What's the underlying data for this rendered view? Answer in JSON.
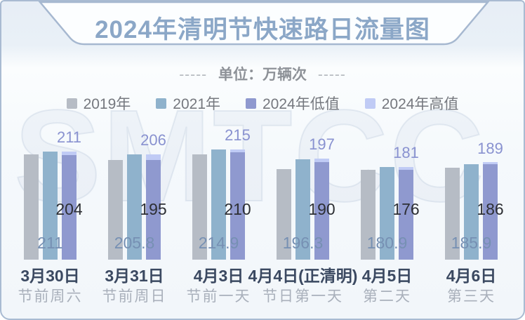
{
  "title": "2024年清明节快速路日流量图",
  "subtitle": {
    "dash_left": "-----",
    "label": "单位：万辆次",
    "dash_right": "-----"
  },
  "watermark": "SMTCC",
  "chart_data": {
    "type": "bar",
    "title": "2024年清明节快速路日流量图",
    "unit": "万辆次",
    "categories": [
      "3月30日",
      "3月31日",
      "4月3日",
      "4月4日(正清明)",
      "4月5日",
      "4月6日"
    ],
    "category_descriptions": [
      "节前周六",
      "节前周日",
      "节前一天",
      "节日第一天",
      "第二天",
      "第三天"
    ],
    "series": [
      {
        "name": "2019年",
        "color": "#b6bcc5",
        "values": [
          205,
          194,
          205,
          177,
          175,
          179
        ],
        "estimated": true,
        "value_labels_shown": false
      },
      {
        "name": "2021年",
        "color": "#8fb2cc",
        "values": [
          211,
          205.8,
          214.9,
          196.3,
          180.9,
          185.9
        ],
        "value_labels_shown": true,
        "label_color": "#7690b3"
      },
      {
        "name": "2024年低值",
        "color": "#8f99cf",
        "values": [
          204,
          195,
          210,
          190,
          176,
          186
        ],
        "value_labels_shown": true,
        "label_color": "#2d2f34"
      },
      {
        "name": "2024年高值",
        "color": "#c0cbf5",
        "values": [
          211,
          206,
          215,
          197,
          181,
          189
        ],
        "value_labels_shown": true,
        "label_color": "#8992d0",
        "render": "cap_on_low_bar"
      }
    ],
    "ylim": [
      0,
      240
    ],
    "grid": false,
    "legend_position": "top",
    "axis_lines_visible": false
  }
}
